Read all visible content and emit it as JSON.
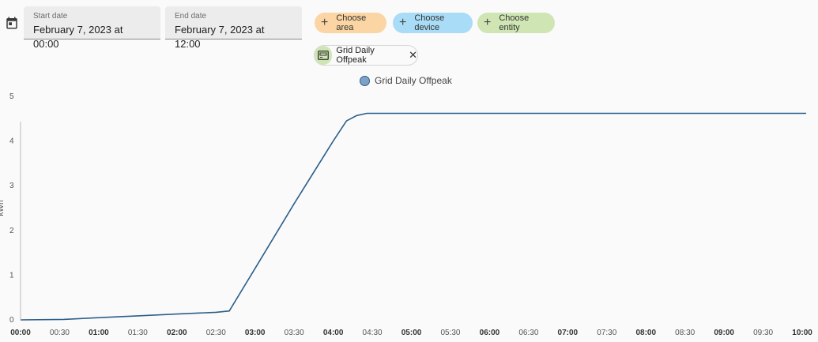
{
  "date_range": {
    "start_label": "Start date",
    "start_value": "February 7, 2023 at 00:00",
    "end_label": "End date",
    "end_value": "February 7, 2023 at 12:00"
  },
  "target_picker": {
    "area_label": "Choose area",
    "device_label": "Choose device",
    "entity_label": "Choose entity",
    "area_color": "#fbd5a3",
    "device_color": "#a9dcf6",
    "entity_color": "#cfe6b4"
  },
  "selected_entity": {
    "name": "Grid Daily Offpeak",
    "icon": "meter-icon"
  },
  "chart_data": {
    "type": "line",
    "ylabel": "kWh",
    "ylim": [
      0,
      5
    ],
    "yticks": [
      0,
      1,
      2,
      3,
      4,
      5
    ],
    "xlim_hours": [
      0,
      10.05
    ],
    "xticks": [
      {
        "label": "00:00",
        "bold": true
      },
      {
        "label": "00:30",
        "bold": false
      },
      {
        "label": "01:00",
        "bold": true
      },
      {
        "label": "01:30",
        "bold": false
      },
      {
        "label": "02:00",
        "bold": true
      },
      {
        "label": "02:30",
        "bold": false
      },
      {
        "label": "03:00",
        "bold": true
      },
      {
        "label": "03:30",
        "bold": false
      },
      {
        "label": "04:00",
        "bold": true
      },
      {
        "label": "04:30",
        "bold": false
      },
      {
        "label": "05:00",
        "bold": true
      },
      {
        "label": "05:30",
        "bold": false
      },
      {
        "label": "06:00",
        "bold": true
      },
      {
        "label": "06:30",
        "bold": false
      },
      {
        "label": "07:00",
        "bold": true
      },
      {
        "label": "07:30",
        "bold": false
      },
      {
        "label": "08:00",
        "bold": true
      },
      {
        "label": "08:30",
        "bold": false
      },
      {
        "label": "09:00",
        "bold": true
      },
      {
        "label": "09:30",
        "bold": false
      },
      {
        "label": "10:00",
        "bold": true
      }
    ],
    "series": [
      {
        "name": "Grid Daily Offpeak",
        "color": "#2c5f8a",
        "x": [
          0,
          0.55,
          1.0,
          1.5,
          2.0,
          2.5,
          2.67,
          3.0,
          3.5,
          4.0,
          4.17,
          4.3,
          4.43,
          5.0,
          6.0,
          7.0,
          8.0,
          9.0,
          10.0,
          10.05
        ],
        "y": [
          0,
          0.01,
          0.05,
          0.09,
          0.13,
          0.17,
          0.2,
          1.15,
          2.6,
          4.0,
          4.45,
          4.57,
          4.62,
          4.62,
          4.62,
          4.62,
          4.62,
          4.62,
          4.62,
          4.62
        ]
      }
    ]
  }
}
